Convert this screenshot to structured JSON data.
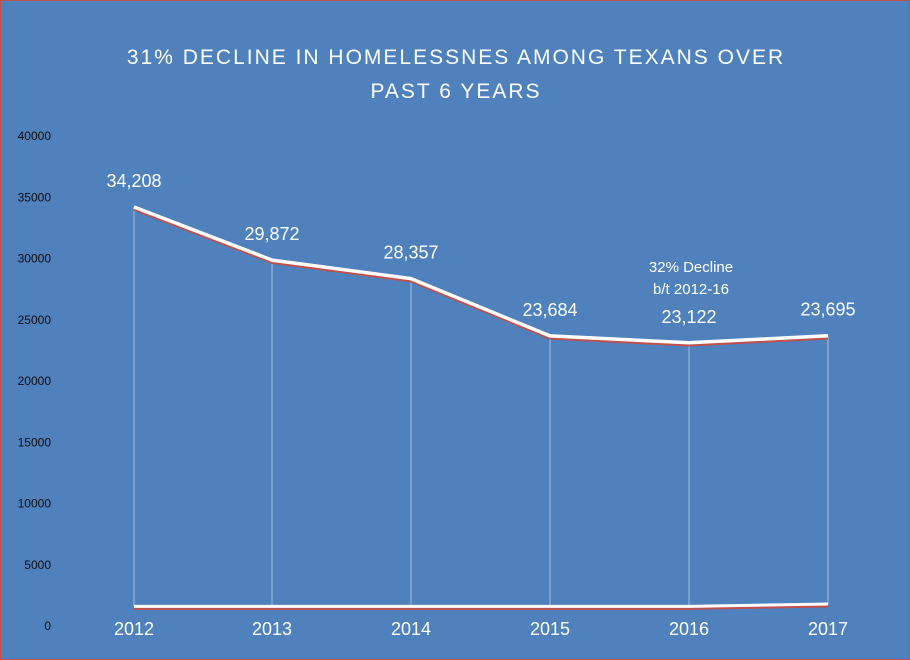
{
  "chart_data": {
    "type": "line",
    "title_lines": [
      "31% DECLINE IN HOMELESSNES AMONG TEXANS OVER",
      "PAST 6 YEARS"
    ],
    "categories": [
      "2012",
      "2013",
      "2014",
      "2015",
      "2016",
      "2017"
    ],
    "series": [
      {
        "values": [
          34208,
          29872,
          28357,
          23684,
          23122,
          23695
        ],
        "labels": [
          "34,208",
          "29,872",
          "28,357",
          "23,684",
          "23,122",
          "23,695"
        ]
      },
      {
        "values": [
          1600,
          1600,
          1600,
          1600,
          1600,
          1800
        ]
      }
    ],
    "ylim": [
      0,
      40000
    ],
    "yticks": [
      0,
      5000,
      10000,
      15000,
      20000,
      25000,
      30000,
      35000,
      40000
    ],
    "grid": false,
    "drop_lines": true,
    "annotation": {
      "lines": [
        "32% Decline",
        "b/t 2012-16"
      ]
    },
    "colors": {
      "background": "#4f81bd",
      "line": "#ffffff",
      "line_shadow": "#c0504d",
      "text": "#ffffff",
      "axis_text": "#0d0d0d"
    }
  }
}
